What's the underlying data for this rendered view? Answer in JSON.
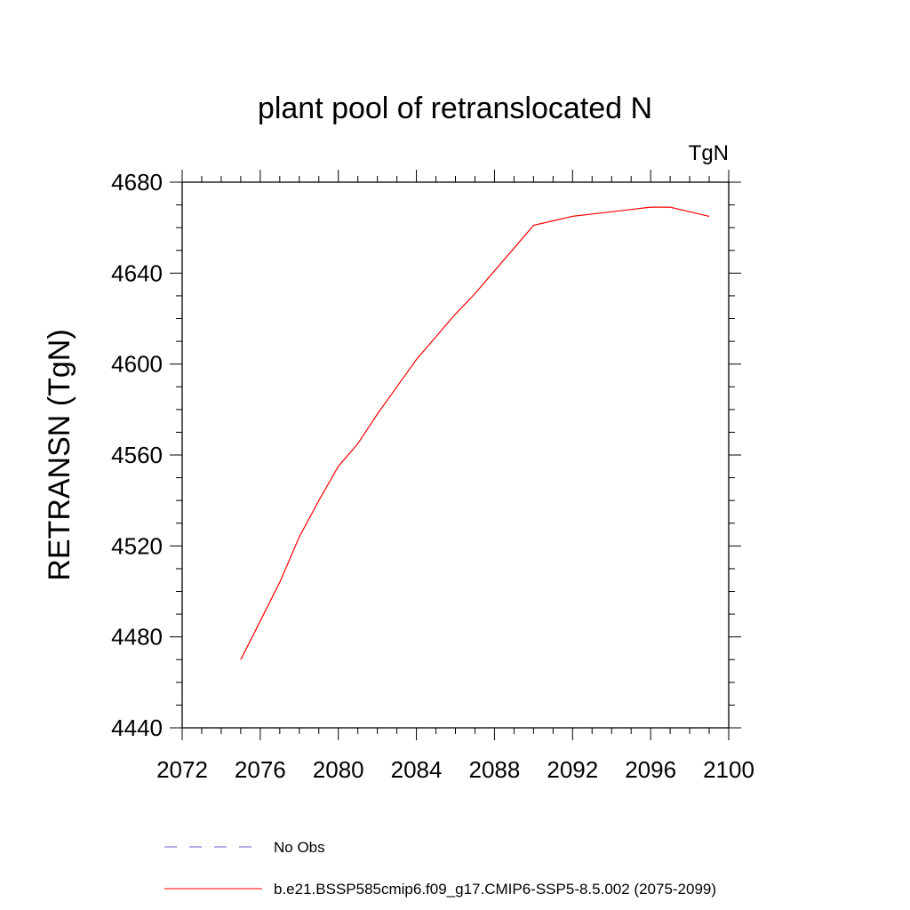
{
  "chart_data": {
    "type": "line",
    "title": "plant pool of retranslocated N",
    "units": "TgN",
    "ylabel": "RETRANSN  (TgN)",
    "xlabel": "",
    "xlim": [
      2072,
      2100
    ],
    "ylim": [
      4440,
      4680
    ],
    "x_ticks": [
      2072,
      2076,
      2080,
      2084,
      2088,
      2092,
      2096,
      2100
    ],
    "y_ticks": [
      4440,
      4480,
      4520,
      4560,
      4600,
      4640,
      4680
    ],
    "grid": false,
    "legend_position": "bottom",
    "legend": [
      {
        "label": "No Obs",
        "color": "#6a5acd",
        "style": "dashed"
      },
      {
        "label": "b.e21.BSSP585cmip6.f09_g17.CMIP6-SSP5-8.5.002 (2075-2099)",
        "color": "#ff0000",
        "style": "solid"
      }
    ],
    "series": [
      {
        "name": "b.e21.BSSP585cmip6.f09_g17.CMIP6-SSP5-8.5.002 (2075-2099)",
        "color": "#ff0000",
        "x": [
          2075,
          2076,
          2077,
          2078,
          2079,
          2080,
          2081,
          2082,
          2083,
          2084,
          2085,
          2086,
          2087,
          2088,
          2089,
          2090,
          2091,
          2092,
          2093,
          2094,
          2095,
          2096,
          2097,
          2098,
          2099
        ],
        "y": [
          4470,
          4487,
          4504,
          4524,
          4540,
          4555,
          4565,
          4578,
          4590,
          4602,
          4612,
          4622,
          4631,
          4641,
          4651,
          4661,
          4663,
          4665,
          4666,
          4667,
          4668,
          4669,
          4669,
          4667,
          4665
        ]
      }
    ]
  }
}
